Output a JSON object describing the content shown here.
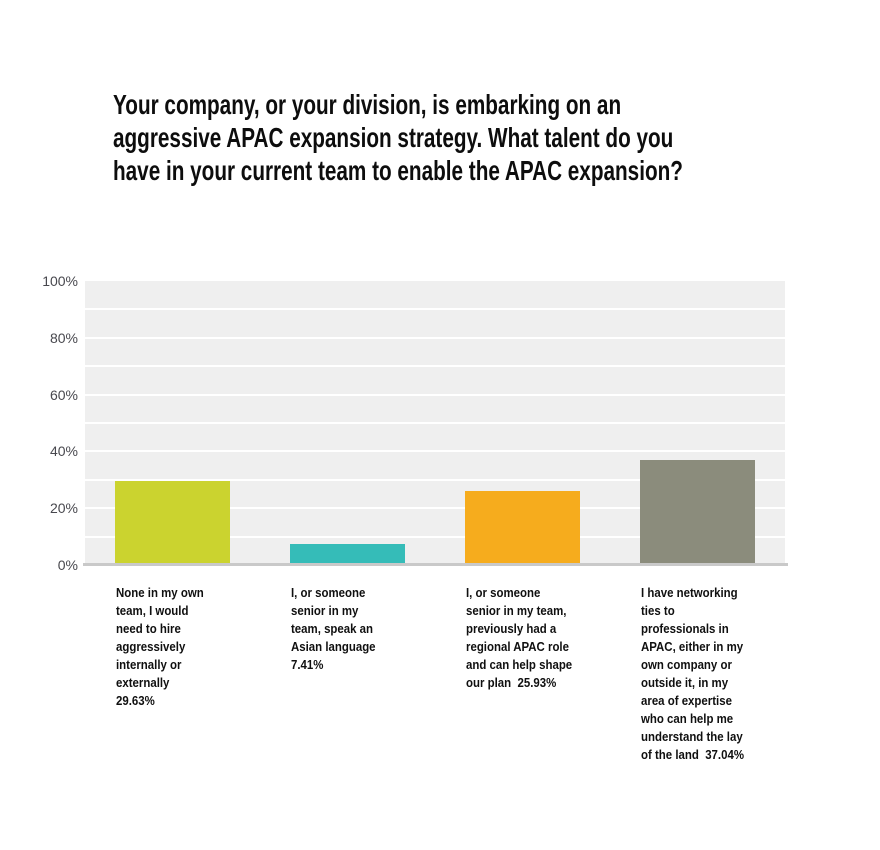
{
  "title": {
    "text": "Your company, or your division, is embarking on an\naggressive APAC expansion strategy. What talent do you\nhave in your current team to enable the APAC expansion?"
  },
  "chart_data": {
    "type": "bar",
    "title": "Your company, or your division, is embarking on an aggressive APAC expansion strategy. What talent do you have in your current team to enable the APAC expansion?",
    "categories": [
      "None in my own\nteam, I would\nneed to hire\naggressively\ninternally or\nexternally\n29.63%",
      "I, or someone\nsenior in my\nteam, speak an\nAsian language\n7.41%",
      "I, or someone\nsenior in my team,\npreviously had a\nregional APAC role\nand can help shape\nour plan  25.93%",
      "I have networking\nties to\nprofessionals in\nAPAC, either in my\nown company or\noutside it, in my\narea of expertise\nwho can help me\nunderstand the lay\nof the land  37.04%"
    ],
    "values": [
      29.63,
      7.41,
      25.93,
      37.04
    ],
    "value_labels": [
      "29.63%",
      "7.41%",
      "25.93%",
      "37.04%"
    ],
    "bar_colors": [
      "#cbd32f",
      "#35bcb8",
      "#f6ac1d",
      "#8b8c7c"
    ],
    "xlabel": "",
    "ylabel": "",
    "ylim": [
      0,
      100
    ],
    "ytick_labels": [
      "100%",
      "80%",
      "60%",
      "40%",
      "20%",
      "0%"
    ],
    "ytick_values": [
      100,
      80,
      60,
      40,
      20,
      0
    ],
    "grid": true,
    "legend": false,
    "colors": {
      "plot_background": "#efefef",
      "gridline": "#ffffff",
      "axis_line": "#c9c9c9",
      "tick_label": "#48484e",
      "title_text": "#0d0d0d",
      "category_text": "#101010",
      "page_background": "#ffffff"
    }
  }
}
